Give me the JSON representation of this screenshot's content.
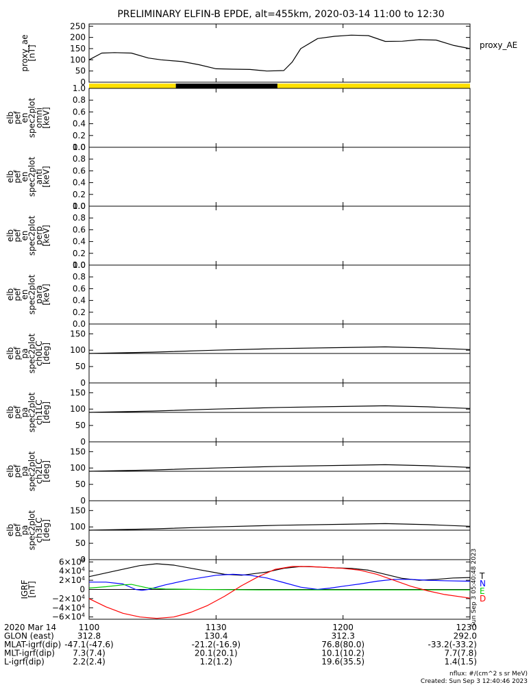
{
  "title": "PRELIMINARY ELFIN-B EPDE, alt=455km, 2020-03-14 11:00 to 12:30",
  "colors": {
    "axis": "#000000",
    "bar_yellow": "#ffe000",
    "bar_black": "#000000",
    "comp_t": "#000000",
    "comp_n": "#0000ff",
    "comp_e": "#00cc00",
    "comp_d": "#ff0000"
  },
  "chart_data": [
    {
      "id": "proxy_ae",
      "type": "line",
      "ylabel": [
        "proxy_ae",
        "[nT]"
      ],
      "legend": "proxy_AE",
      "ylim": [
        0,
        260
      ],
      "yticks": [
        "250",
        "200",
        "150",
        "100",
        "50",
        "0"
      ],
      "x_minutes": [
        0,
        3,
        6,
        10,
        14,
        17,
        22,
        26,
        30,
        34,
        38,
        42,
        46,
        48,
        50,
        54,
        58,
        62,
        66,
        70,
        74,
        78,
        82,
        86,
        90
      ],
      "values": [
        100,
        130,
        132,
        130,
        108,
        100,
        92,
        78,
        60,
        58,
        57,
        50,
        52,
        90,
        150,
        195,
        205,
        210,
        208,
        182,
        183,
        190,
        188,
        165,
        150
      ]
    },
    {
      "id": "data_bar",
      "type": "bar",
      "segments": [
        {
          "start_min": 0,
          "end_min": 20.5,
          "state": "yellow"
        },
        {
          "start_min": 20.5,
          "end_min": 44.5,
          "state": "black"
        },
        {
          "start_min": 44.5,
          "end_min": 90,
          "state": "yellow"
        }
      ]
    },
    {
      "id": "spec_omni",
      "type": "line",
      "ylabel": [
        "elb",
        "pef",
        "en",
        "spec2plot",
        "omni",
        "[keV]"
      ],
      "ylim": [
        0,
        1
      ],
      "yticks": [
        "1.0",
        "0.8",
        "0.6",
        "0.4",
        "0.2",
        "0.0"
      ]
    },
    {
      "id": "spec_anti",
      "type": "line",
      "ylabel": [
        "elb",
        "pef",
        "en",
        "spec2plot",
        "anti",
        "[keV]"
      ],
      "ylim": [
        0,
        1
      ],
      "yticks": [
        "1.0",
        "0.8",
        "0.6",
        "0.4",
        "0.2",
        "0.0"
      ]
    },
    {
      "id": "spec_perp",
      "type": "line",
      "ylabel": [
        "elb",
        "pef",
        "en",
        "spec2plot",
        "perp",
        "[keV]"
      ],
      "ylim": [
        0,
        1
      ],
      "yticks": [
        "1.0",
        "0.8",
        "0.6",
        "0.4",
        "0.2",
        "0.0"
      ]
    },
    {
      "id": "spec_para",
      "type": "line",
      "ylabel": [
        "elb",
        "pef",
        "en",
        "spec2plot",
        "para",
        "[keV]"
      ],
      "ylim": [
        0,
        1
      ],
      "yticks": [
        "1.0",
        "0.8",
        "0.6",
        "0.4",
        "0.2",
        "0.0"
      ]
    },
    {
      "id": "pa_ch0",
      "type": "line",
      "ylabel": [
        "elb",
        "pef",
        "pa",
        "spec2plot",
        "ch0LC",
        "[deg]"
      ],
      "ylim": [
        0,
        180
      ],
      "yticks": [
        "150",
        "100",
        "50",
        "0"
      ],
      "hline": 90,
      "x_minutes": [
        0,
        15,
        30,
        45,
        60,
        70,
        80,
        90
      ],
      "values": [
        90,
        94,
        100,
        105,
        108,
        110,
        107,
        102
      ]
    },
    {
      "id": "pa_ch1",
      "type": "line",
      "ylabel": [
        "elb",
        "pef",
        "pa",
        "spec2plot",
        "ch1LC",
        "[deg]"
      ],
      "ylim": [
        0,
        180
      ],
      "yticks": [
        "150",
        "100",
        "50",
        "0"
      ],
      "hline": 90,
      "x_minutes": [
        0,
        15,
        30,
        45,
        60,
        70,
        80,
        90
      ],
      "values": [
        90,
        94,
        100,
        105,
        108,
        110,
        107,
        102
      ]
    },
    {
      "id": "pa_ch2",
      "type": "line",
      "ylabel": [
        "elb",
        "pef",
        "pa",
        "spec2plot",
        "ch2LC",
        "[deg]"
      ],
      "ylim": [
        0,
        180
      ],
      "yticks": [
        "150",
        "100",
        "50",
        "0"
      ],
      "hline": 90,
      "x_minutes": [
        0,
        15,
        30,
        45,
        60,
        70,
        80,
        90
      ],
      "values": [
        90,
        94,
        100,
        105,
        108,
        110,
        107,
        102
      ]
    },
    {
      "id": "pa_ch3",
      "type": "line",
      "ylabel": [
        "elb",
        "pef",
        "pa",
        "spec2plot",
        "ch3LC",
        "[deg]"
      ],
      "ylim": [
        0,
        180
      ],
      "yticks": [
        "150",
        "100",
        "50",
        "0"
      ],
      "hline": 90,
      "x_minutes": [
        0,
        15,
        30,
        45,
        60,
        70,
        80,
        90
      ],
      "values": [
        90,
        94,
        100,
        105,
        108,
        110,
        107,
        102
      ]
    },
    {
      "id": "igrf",
      "type": "line",
      "ylabel": [
        "IGRF",
        "[nT]"
      ],
      "ylim": [
        -65000,
        65000
      ],
      "yticks": [
        {
          "value": 60000,
          "mant": "6×10",
          "exp": "4"
        },
        {
          "value": 40000,
          "mant": "4×10",
          "exp": "4"
        },
        {
          "value": 20000,
          "mant": "2×10",
          "exp": "4"
        },
        {
          "value": 0,
          "mant": "0",
          "exp": ""
        },
        {
          "value": -20000,
          "mant": "−2×10",
          "exp": "4"
        },
        {
          "value": -40000,
          "mant": "−4×10",
          "exp": "4"
        },
        {
          "value": -60000,
          "mant": "−6×10",
          "exp": "4"
        }
      ],
      "hline": 0,
      "legend": [
        "T",
        "N",
        "E",
        "D"
      ],
      "side_label": "Sun Sep  3 05:40:48 2023",
      "series": [
        {
          "name": "T",
          "color": "#000000",
          "x_minutes": [
            0,
            6,
            12,
            16,
            20,
            26,
            32,
            36,
            42,
            46,
            50,
            54,
            58,
            62,
            66,
            70,
            74,
            78,
            82,
            86,
            90
          ],
          "values": [
            28000,
            40000,
            52000,
            56000,
            53000,
            43000,
            33000,
            31000,
            38000,
            46000,
            50000,
            49000,
            47000,
            46000,
            42000,
            33000,
            24000,
            20000,
            22000,
            25000,
            26000
          ]
        },
        {
          "name": "N",
          "color": "#0000ff",
          "x_minutes": [
            0,
            4,
            8,
            11,
            12.5,
            14,
            18,
            24,
            30,
            34,
            38,
            42,
            46,
            50,
            54,
            57,
            60,
            64,
            68,
            72,
            76,
            80,
            84,
            90
          ],
          "values": [
            16000,
            16000,
            12000,
            0,
            -2000,
            0,
            10000,
            22000,
            31000,
            33000,
            31000,
            25000,
            15000,
            5000,
            0,
            3000,
            7000,
            12000,
            18000,
            22000,
            22000,
            20000,
            19000,
            18000
          ]
        },
        {
          "name": "E",
          "color": "#00cc00",
          "x_minutes": [
            0,
            4,
            8,
            10,
            12,
            14,
            18,
            26,
            40,
            60,
            80,
            90
          ],
          "values": [
            3000,
            6000,
            10000,
            11000,
            7000,
            3000,
            1000,
            0,
            -1000,
            -1000,
            -1000,
            -1000
          ]
        },
        {
          "name": "D",
          "color": "#ff0000",
          "x_minutes": [
            0,
            4,
            8,
            12,
            16,
            20,
            24,
            28,
            32,
            36,
            40,
            44,
            48,
            52,
            56,
            60,
            64,
            68,
            72,
            76,
            80,
            84,
            90
          ],
          "values": [
            -20000,
            -38000,
            -52000,
            -60000,
            -63000,
            -60000,
            -50000,
            -35000,
            -15000,
            8000,
            28000,
            44000,
            50000,
            50000,
            48000,
            46000,
            42000,
            33000,
            20000,
            7000,
            -3000,
            -11000,
            -19000
          ]
        }
      ]
    }
  ],
  "xaxis": {
    "ticks": [
      {
        "minute": 0,
        "label": "1100"
      },
      {
        "minute": 30,
        "label": "1130"
      },
      {
        "minute": 60,
        "label": "1200"
      },
      {
        "minute": 90,
        "label": "1230"
      }
    ]
  },
  "footer": {
    "rows": [
      {
        "label": "2020 Mar 14",
        "values": [
          "1100",
          "1130",
          "1200",
          "1230"
        ]
      },
      {
        "label": "GLON (east)",
        "values": [
          "312.8",
          "130.4",
          "312.3",
          "292.0"
        ]
      },
      {
        "label": "MLAT-igrf(dip)",
        "values": [
          "-47.1(-47.6)",
          "-21.2(-16.9)",
          "76.8(80.0)",
          "-33.2(-33.2)"
        ]
      },
      {
        "label": "MLT-igrf(dip)",
        "values": [
          "7.3(7.4)",
          "20.1(20.1)",
          "10.1(10.2)",
          "7.7(7.8)"
        ]
      },
      {
        "label": "L-igrf(dip)",
        "values": [
          "2.2(2.4)",
          "1.2(1.2)",
          "19.6(35.5)",
          "1.4(1.5)"
        ]
      }
    ],
    "nflux": "nflux: #/(cm^2 s sr MeV)",
    "created": "Created: Sun Sep  3 12:40:46 2023"
  }
}
